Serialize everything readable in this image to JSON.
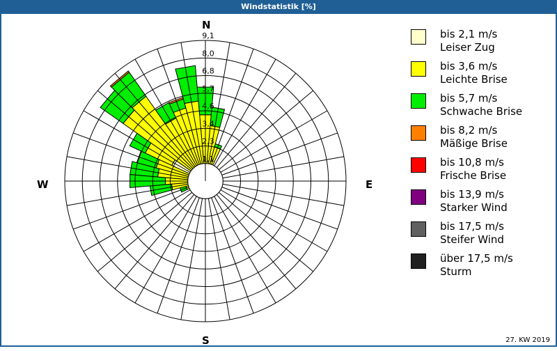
{
  "title": "Windstatistik [%]",
  "footer": "27. KW 2019",
  "compass": {
    "n": "N",
    "e": "E",
    "s": "S",
    "w": "W"
  },
  "legend": [
    {
      "line1": "bis 2,1 m/s",
      "line2": "Leiser Zug",
      "color": "#ffffcc"
    },
    {
      "line1": "bis 3,6 m/s",
      "line2": "Leichte Brise",
      "color": "#ffff00"
    },
    {
      "line1": "bis 5,7 m/s",
      "line2": "Schwache Brise",
      "color": "#00ee00"
    },
    {
      "line1": "bis 8,2 m/s",
      "line2": "Mäßige Brise",
      "color": "#ff8000"
    },
    {
      "line1": "bis 10,8 m/s",
      "line2": "Frische Brise",
      "color": "#ff0000"
    },
    {
      "line1": "bis 13,9 m/s",
      "line2": "Starker Wind",
      "color": "#800080"
    },
    {
      "line1": "bis 17,5 m/s",
      "line2": "Steifer Wind",
      "color": "#606060"
    },
    {
      "line1": "über 17,5 m/s",
      "line2": "Sturm",
      "color": "#202020"
    }
  ],
  "chart_data": {
    "type": "wind-rose",
    "title": "Windstatistik [%]",
    "ring_labels": [
      "1,1",
      "2,3",
      "3,4",
      "4,6",
      "5,7",
      "6,8",
      "8,0",
      "9,1"
    ],
    "rmax": 9.1,
    "sector_width_deg": 10,
    "series_names": [
      "Leiser Zug",
      "Leichte Brise",
      "Schwache Brise",
      "Mäßige Brise"
    ],
    "sectors": [
      {
        "dir": 0,
        "values": [
          0.3,
          4.0,
          1.8,
          0.0
        ]
      },
      {
        "dir": 10,
        "values": [
          0.3,
          3.3,
          1.2,
          0.0
        ]
      },
      {
        "dir": 20,
        "values": [
          0.2,
          2.1,
          0.2,
          0.0
        ]
      },
      {
        "dir": 30,
        "values": [
          0.1,
          0.3,
          0.0,
          0.0
        ]
      },
      {
        "dir": 40,
        "values": [
          0.1,
          0.2,
          0.0,
          0.0
        ]
      },
      {
        "dir": 200,
        "values": [
          0.1,
          0.1,
          0.0,
          0.0
        ]
      },
      {
        "dir": 210,
        "values": [
          0.1,
          0.2,
          0.0,
          0.0
        ]
      },
      {
        "dir": 220,
        "values": [
          0.1,
          0.3,
          0.1,
          0.0
        ]
      },
      {
        "dir": 230,
        "values": [
          0.1,
          0.4,
          0.2,
          0.0
        ]
      },
      {
        "dir": 240,
        "values": [
          0.2,
          0.6,
          0.3,
          0.0
        ]
      },
      {
        "dir": 250,
        "values": [
          0.3,
          1.0,
          0.4,
          0.0
        ]
      },
      {
        "dir": 260,
        "values": [
          0.4,
          1.8,
          1.4,
          0.0
        ]
      },
      {
        "dir": 270,
        "values": [
          0.4,
          2.2,
          2.3,
          0.0
        ]
      },
      {
        "dir": 280,
        "values": [
          0.5,
          2.6,
          1.8,
          0.0
        ]
      },
      {
        "dir": 290,
        "values": [
          0.7,
          2.6,
          1.3,
          0.0
        ]
      },
      {
        "dir": 300,
        "values": [
          2.4,
          1.9,
          1.1,
          0.0
        ]
      },
      {
        "dir": 310,
        "values": [
          0.8,
          5.7,
          1.8,
          0.0
        ]
      },
      {
        "dir": 320,
        "values": [
          0.8,
          5.9,
          1.9,
          0.1
        ]
      },
      {
        "dir": 330,
        "values": [
          0.7,
          3.8,
          1.1,
          0.0
        ]
      },
      {
        "dir": 340,
        "values": [
          0.6,
          4.3,
          0.6,
          0.1
        ]
      },
      {
        "dir": 350,
        "values": [
          0.5,
          4.7,
          2.3,
          0.0
        ]
      }
    ]
  }
}
